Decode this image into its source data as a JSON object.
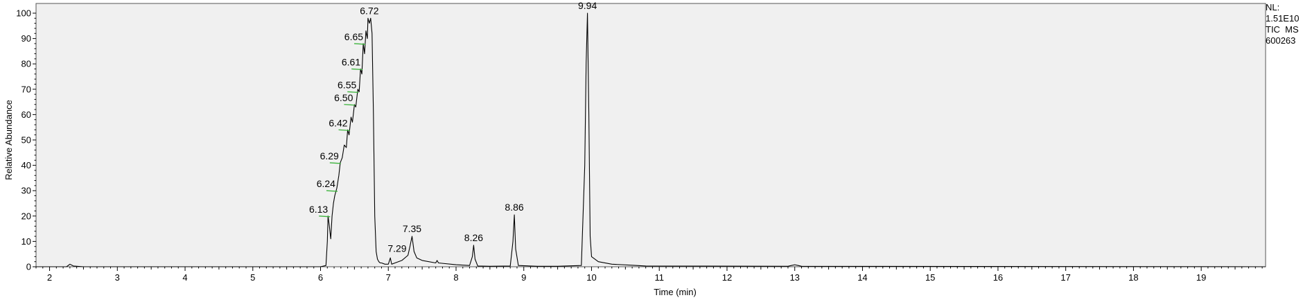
{
  "info": {
    "nl_label": "NL:",
    "nl_value": "1.51E10",
    "trace": "TIC  MS",
    "sample": "600263"
  },
  "chart_data": {
    "type": "line",
    "title": "",
    "xlabel": "Time (min)",
    "ylabel": "Relative Abundance",
    "xlim": [
      1.8,
      19.95
    ],
    "ylim": [
      0,
      100
    ],
    "xticks": [
      2,
      3,
      4,
      5,
      6,
      7,
      8,
      9,
      10,
      11,
      12,
      13,
      14,
      15,
      16,
      17,
      18,
      19
    ],
    "yticks": [
      0,
      10,
      20,
      30,
      40,
      50,
      60,
      70,
      80,
      90,
      100
    ],
    "grid": false,
    "legend": "none",
    "background": "#f0f0f0",
    "line_color": "#000000",
    "marker_color": "#3cb43c",
    "series": [
      {
        "x": [
          1.8,
          2.25,
          2.3,
          2.35,
          2.5,
          3.0,
          4.0,
          5.0,
          6.0,
          6.08,
          6.1,
          6.11,
          6.13,
          6.15,
          6.17,
          6.19,
          6.21,
          6.24,
          6.27,
          6.29,
          6.32,
          6.35,
          6.38,
          6.4,
          6.42,
          6.45,
          6.47,
          6.5,
          6.52,
          6.55,
          6.57,
          6.59,
          6.61,
          6.63,
          6.65,
          6.67,
          6.69,
          6.7,
          6.72,
          6.74,
          6.76,
          6.78,
          6.8,
          6.82,
          6.84,
          6.86,
          6.88,
          6.9,
          6.95,
          7.0,
          7.03,
          7.05,
          7.1,
          7.2,
          7.29,
          7.32,
          7.35,
          7.38,
          7.42,
          7.5,
          7.7,
          7.72,
          7.74,
          8.0,
          8.2,
          8.24,
          8.26,
          8.28,
          8.32,
          8.5,
          8.8,
          8.84,
          8.86,
          8.88,
          8.92,
          9.2,
          9.5,
          9.85,
          9.9,
          9.92,
          9.94,
          9.96,
          9.98,
          10.0,
          10.1,
          10.3,
          10.6,
          10.8,
          12.9,
          13.0,
          13.05,
          13.1,
          19.95
        ],
        "y": [
          0,
          0,
          1,
          0.3,
          0,
          0,
          0,
          0,
          0,
          0.5,
          10,
          20,
          16,
          11,
          20,
          25,
          28,
          31,
          36,
          41,
          43,
          48,
          47,
          54,
          52,
          59,
          57,
          64,
          63,
          70,
          69,
          78,
          76,
          88,
          84,
          93,
          90,
          98,
          96,
          98,
          92,
          60,
          20,
          6,
          3,
          2,
          1.5,
          1.5,
          1,
          1,
          3.5,
          1,
          1.5,
          2.5,
          4.5,
          8,
          12,
          6,
          3.5,
          2.5,
          1.5,
          2.5,
          1.5,
          0.8,
          0.5,
          4,
          8.5,
          3,
          0.3,
          0.2,
          0.3,
          10,
          20.5,
          7,
          0.5,
          0.2,
          0.2,
          0.5,
          40,
          80,
          100,
          60,
          12,
          4,
          2,
          1,
          0.6,
          0.3,
          0.2,
          0.8,
          0.5,
          0.2,
          0
        ]
      }
    ],
    "annotations": [
      {
        "label": "6.13",
        "x": 6.13,
        "y": 20
      },
      {
        "label": "6.24",
        "x": 6.24,
        "y": 30
      },
      {
        "label": "6.29",
        "x": 6.29,
        "y": 41
      },
      {
        "label": "6.42",
        "x": 6.42,
        "y": 54
      },
      {
        "label": "6.50",
        "x": 6.5,
        "y": 64
      },
      {
        "label": "6.55",
        "x": 6.55,
        "y": 69
      },
      {
        "label": "6.61",
        "x": 6.61,
        "y": 78
      },
      {
        "label": "6.65",
        "x": 6.65,
        "y": 88
      },
      {
        "label": "6.72",
        "x": 6.72,
        "y": 98
      },
      {
        "label": "7.29",
        "x": 7.29,
        "y": 4.5
      },
      {
        "label": "7.35",
        "x": 7.35,
        "y": 12
      },
      {
        "label": "8.26",
        "x": 8.26,
        "y": 8.5
      },
      {
        "label": "8.86",
        "x": 8.86,
        "y": 20.5
      },
      {
        "label": "9.94",
        "x": 9.94,
        "y": 100
      }
    ]
  }
}
